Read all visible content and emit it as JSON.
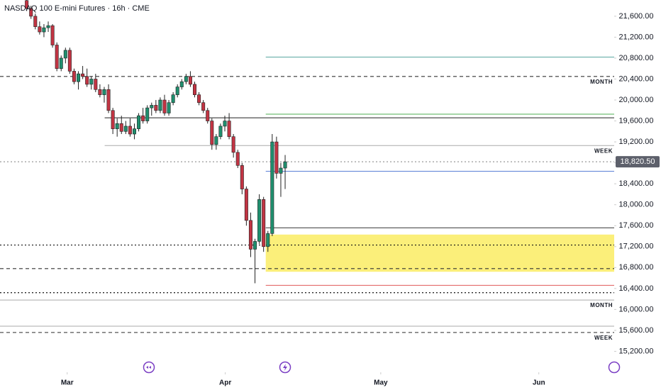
{
  "chart_data": {
    "type": "candlestick",
    "title": "NASDAQ 100 E-mini Futures · 16h · CME",
    "up_color": "#1f8f6e",
    "down_color": "#c23443",
    "wick_color": "#222222",
    "open": [
      21900,
      21750,
      21600,
      21400,
      21300,
      21380,
      21420,
      21050,
      20600,
      20800,
      20950,
      20550,
      20350,
      20500,
      20450,
      20300,
      20400,
      20200,
      20100,
      20200,
      19800,
      19450,
      19550,
      19400,
      19500,
      19350,
      19450,
      19700,
      19600,
      19850,
      19900,
      19800,
      20000,
      19750,
      19950,
      20100,
      20250,
      20350,
      20450,
      20300,
      20100,
      19950,
      19800,
      19600,
      19150,
      19300,
      19500,
      19600,
      19300,
      19000,
      18750,
      18300,
      17700,
      17150,
      17300,
      18100,
      17200,
      17450,
      19200,
      18600,
      18700
    ],
    "high": [
      21950,
      21800,
      21650,
      21500,
      21450,
      21500,
      21450,
      21100,
      20850,
      21000,
      21000,
      20600,
      20550,
      20650,
      20600,
      20450,
      20500,
      20300,
      20250,
      20300,
      19850,
      19650,
      19700,
      19600,
      19650,
      19550,
      19750,
      19850,
      19900,
      19950,
      20000,
      20050,
      20100,
      20000,
      20150,
      20300,
      20400,
      20500,
      20550,
      20350,
      20150,
      20000,
      19850,
      19650,
      19350,
      19550,
      19700,
      19750,
      19350,
      19050,
      18800,
      18350,
      17850,
      17350,
      18200,
      18150,
      17500,
      19350,
      19300,
      18800,
      18950
    ],
    "low": [
      21700,
      21550,
      21350,
      21250,
      21200,
      21300,
      21000,
      20550,
      20550,
      20700,
      20500,
      20300,
      20200,
      20400,
      20250,
      20200,
      20150,
      20050,
      19950,
      19750,
      19350,
      19300,
      19350,
      19350,
      19300,
      19250,
      19400,
      19550,
      19550,
      19700,
      19750,
      19750,
      19700,
      19700,
      19900,
      20050,
      20200,
      20300,
      20250,
      20050,
      19900,
      19750,
      19550,
      19050,
      19050,
      19250,
      19400,
      19250,
      18900,
      18700,
      18200,
      17600,
      17000,
      16500,
      17250,
      17100,
      17100,
      17400,
      18500,
      18150,
      18300
    ],
    "close": [
      21750,
      21600,
      21400,
      21300,
      21380,
      21420,
      21050,
      20600,
      20800,
      20950,
      20550,
      20350,
      20500,
      20450,
      20300,
      20400,
      20200,
      20100,
      20200,
      19800,
      19450,
      19550,
      19400,
      19500,
      19350,
      19450,
      19700,
      19600,
      19850,
      19900,
      19800,
      20000,
      19750,
      19950,
      20100,
      20250,
      20350,
      20450,
      20300,
      20100,
      19950,
      19800,
      19600,
      19150,
      19300,
      19500,
      19600,
      19300,
      19000,
      18750,
      18300,
      17700,
      17150,
      17300,
      18100,
      17200,
      17450,
      19200,
      18600,
      18700,
      18820.5
    ],
    "xlim": [
      -6.2,
      136.4
    ],
    "xticks": [
      {
        "value": 9.4,
        "label": "Mar"
      },
      {
        "value": 46.1,
        "label": "Apr"
      },
      {
        "value": 82.2,
        "label": "May"
      },
      {
        "value": 118.9,
        "label": "Jun"
      }
    ],
    "ylim": [
      14800,
      21910
    ],
    "yticks": [
      {
        "value": 15200,
        "label": "15,200.00"
      },
      {
        "value": 15600,
        "label": "15,600.00"
      },
      {
        "value": 16000,
        "label": "16,000.00"
      },
      {
        "value": 16400,
        "label": "16,400.00"
      },
      {
        "value": 16800,
        "label": "16,800.00"
      },
      {
        "value": 17200,
        "label": "17,200.00"
      },
      {
        "value": 17600,
        "label": "17,600.00"
      },
      {
        "value": 18000,
        "label": "18,000.00"
      },
      {
        "value": 18400,
        "label": "18,400.00"
      },
      {
        "value": 18800,
        "label": "18,800.00"
      },
      {
        "value": 19200,
        "label": "19,200.00"
      },
      {
        "value": 19600,
        "label": "19,600.00"
      },
      {
        "value": 20000,
        "label": "20,000.00"
      },
      {
        "value": 20400,
        "label": "20,400.00"
      },
      {
        "value": 20800,
        "label": "20,800.00"
      },
      {
        "value": 21200,
        "label": "21,200.00"
      },
      {
        "value": 21600,
        "label": "21,600.00"
      }
    ],
    "last_price": {
      "value": 18820.5,
      "label": "18,820.50"
    },
    "zone": {
      "top": 17430,
      "bottom": 16720,
      "from": 55.5,
      "color": "#fbef7a"
    },
    "levels": [
      {
        "value": 20450,
        "color": "#333333",
        "style": "dashed",
        "label": "MONTH"
      },
      {
        "value": 20820,
        "color": "#5aa8a0",
        "style": "solid",
        "from": 55.5
      },
      {
        "value": 19730,
        "color": "#4caf50",
        "style": "solid",
        "from": 55.5
      },
      {
        "value": 19660,
        "color": "#222222",
        "style": "solid",
        "from": 18.1
      },
      {
        "value": 19130,
        "color": "#aaaaaa",
        "style": "solid",
        "from": 18.1,
        "label": "WEEK"
      },
      {
        "value": 18640,
        "color": "#5b7fd6",
        "style": "solid",
        "from": 55.5
      },
      {
        "value": 18820.5,
        "color": "#999999",
        "style": "dotted"
      },
      {
        "value": 17560,
        "color": "#333333",
        "style": "solid",
        "from": 55.5
      },
      {
        "value": 17230,
        "color": "#111111",
        "style": "dotted"
      },
      {
        "value": 16780,
        "color": "#333333",
        "style": "dashed"
      },
      {
        "value": 16460,
        "color": "#e05a5a",
        "style": "solid",
        "from": 55.5
      },
      {
        "value": 16320,
        "color": "#111111",
        "style": "dotted"
      },
      {
        "value": 16180,
        "color": "#aaaaaa",
        "style": "solid",
        "label": "MONTH"
      },
      {
        "value": 15680,
        "color": "#aaaaaa",
        "style": "solid"
      },
      {
        "value": 15560,
        "color": "#555555",
        "style": "dashed",
        "label": "WEEK"
      }
    ]
  }
}
